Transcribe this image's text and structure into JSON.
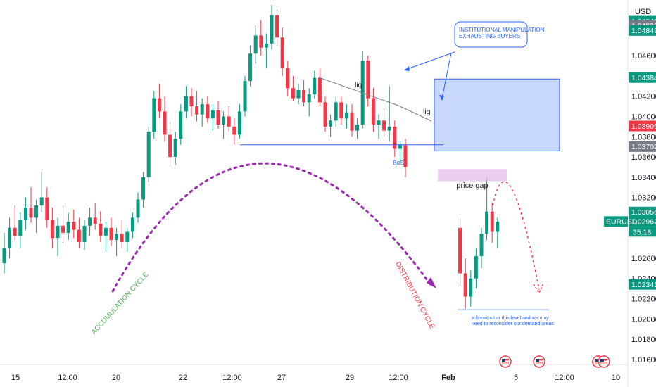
{
  "chart_data": {
    "type": "candlestick",
    "symbol": "EURUSD",
    "currency": "USD",
    "countdown": "35:18",
    "ylim": [
      1.0155,
      1.0515
    ],
    "y_ticks": [
      "1.04600",
      "1.04200",
      "1.04000",
      "1.03800",
      "1.03600",
      "1.03400",
      "1.03200",
      "1.02600",
      "1.02400",
      "1.02200",
      "1.02000",
      "1.01800",
      "1.01600"
    ],
    "x_ticks": [
      "15",
      "12:00",
      "20",
      "22",
      "12:00",
      "27",
      "29",
      "12:00",
      "Feb",
      "5",
      "12:00",
      "10"
    ],
    "price_badges": [
      {
        "label": "1.04941",
        "color": "#089981"
      },
      {
        "label": "1.04899",
        "color": "#787b86"
      },
      {
        "label": "1.04849",
        "color": "#089981"
      },
      {
        "label": "1.04384",
        "color": "#089981"
      },
      {
        "label": "1.03906",
        "color": "#f23645"
      },
      {
        "label": "1.03702",
        "color": "#787b86"
      },
      {
        "label": "1.03056",
        "color": "#089981"
      },
      {
        "label": "1.02962",
        "color": "#089981"
      },
      {
        "label": "1.02341",
        "color": "#089981"
      }
    ],
    "annotations": {
      "callout": "INSTITUTIONAL MANIPULATION\nEXHAUSTING BUYERS",
      "liq1": "liq",
      "liq2": "liq",
      "bos": "BoS",
      "price_gap": "price gap",
      "accumulation": "ACCUMULATION CYCLE",
      "distribution": "DISTRIBUTION CYCLE",
      "breakout_note": "a breakout at this level and we may\nneed to reconsider our demand areas"
    },
    "levels": {
      "bos": 1.0372,
      "supply_zone": [
        1.0366,
        1.0437
      ],
      "price_gap": [
        1.0336,
        1.0348
      ],
      "breakout": 1.0209
    },
    "candles": [
      [
        1.0255,
        1.0285,
        1.0245,
        1.027
      ],
      [
        1.027,
        1.03,
        1.026,
        1.029
      ],
      [
        1.029,
        1.0312,
        1.0278,
        1.0282
      ],
      [
        1.0282,
        1.0305,
        1.027,
        1.0298
      ],
      [
        1.0298,
        1.032,
        1.0288,
        1.031
      ],
      [
        1.031,
        1.033,
        1.0295,
        1.03
      ],
      [
        1.03,
        1.0318,
        1.0285,
        1.0312
      ],
      [
        1.0312,
        1.0345,
        1.0305,
        1.032
      ],
      [
        1.032,
        1.033,
        1.029,
        1.0298
      ],
      [
        1.0298,
        1.031,
        1.027,
        1.028
      ],
      [
        1.028,
        1.03,
        1.0262,
        1.0292
      ],
      [
        1.0292,
        1.0312,
        1.0275,
        1.0285
      ],
      [
        1.0285,
        1.0305,
        1.0278,
        1.0296
      ],
      [
        1.0296,
        1.0308,
        1.028,
        1.0288
      ],
      [
        1.0288,
        1.03,
        1.027,
        1.0276
      ],
      [
        1.0276,
        1.0298,
        1.0268,
        1.0292
      ],
      [
        1.0292,
        1.031,
        1.0282,
        1.03
      ],
      [
        1.03,
        1.0315,
        1.0288,
        1.0294
      ],
      [
        1.0294,
        1.0306,
        1.0276,
        1.0282
      ],
      [
        1.0282,
        1.0296,
        1.0266,
        1.029
      ],
      [
        1.029,
        1.03,
        1.0272,
        1.0278
      ],
      [
        1.0278,
        1.029,
        1.0262,
        1.0284
      ],
      [
        1.0284,
        1.0298,
        1.027,
        1.0276
      ],
      [
        1.0276,
        1.029,
        1.0266,
        1.0286
      ],
      [
        1.0286,
        1.0305,
        1.028,
        1.03
      ],
      [
        1.03,
        1.0325,
        1.0295,
        1.0318
      ],
      [
        1.0318,
        1.0345,
        1.031,
        1.034
      ],
      [
        1.034,
        1.039,
        1.0335,
        1.0385
      ],
      [
        1.0385,
        1.0425,
        1.0378,
        1.0418
      ],
      [
        1.0418,
        1.0432,
        1.0398,
        1.0405
      ],
      [
        1.0405,
        1.042,
        1.0375,
        1.0382
      ],
      [
        1.0382,
        1.0395,
        1.035,
        1.036
      ],
      [
        1.036,
        1.0385,
        1.0352,
        1.0378
      ],
      [
        1.0378,
        1.0412,
        1.0372,
        1.0405
      ],
      [
        1.0405,
        1.043,
        1.0398,
        1.042
      ],
      [
        1.042,
        1.0428,
        1.04,
        1.041
      ],
      [
        1.041,
        1.0425,
        1.0395,
        1.0402
      ],
      [
        1.0402,
        1.0418,
        1.039,
        1.0412
      ],
      [
        1.0412,
        1.042,
        1.0394,
        1.0398
      ],
      [
        1.0398,
        1.0412,
        1.0386,
        1.0406
      ],
      [
        1.0406,
        1.0415,
        1.0388,
        1.0392
      ],
      [
        1.0392,
        1.0405,
        1.0378,
        1.04
      ],
      [
        1.04,
        1.041,
        1.0385,
        1.039
      ],
      [
        1.039,
        1.0398,
        1.0372,
        1.0382
      ],
      [
        1.0382,
        1.0412,
        1.0378,
        1.0405
      ],
      [
        1.0405,
        1.044,
        1.04,
        1.0435
      ],
      [
        1.0435,
        1.047,
        1.043,
        1.0462
      ],
      [
        1.0462,
        1.049,
        1.0452,
        1.048
      ],
      [
        1.048,
        1.0495,
        1.046,
        1.0468
      ],
      [
        1.0468,
        1.0482,
        1.0448,
        1.0472
      ],
      [
        1.0472,
        1.051,
        1.0466,
        1.05
      ],
      [
        1.05,
        1.0506,
        1.047,
        1.0478
      ],
      [
        1.0478,
        1.0488,
        1.044,
        1.0448
      ],
      [
        1.0448,
        1.0455,
        1.042,
        1.0428
      ],
      [
        1.0428,
        1.044,
        1.0415,
        1.0418
      ],
      [
        1.0418,
        1.0432,
        1.0412,
        1.0426
      ],
      [
        1.0426,
        1.0436,
        1.041,
        1.0414
      ],
      [
        1.0414,
        1.0428,
        1.04,
        1.0422
      ],
      [
        1.0422,
        1.0445,
        1.0418,
        1.0438
      ],
      [
        1.0438,
        1.0448,
        1.041,
        1.0414
      ],
      [
        1.0414,
        1.042,
        1.0385,
        1.039
      ],
      [
        1.039,
        1.0402,
        1.038,
        1.0396
      ],
      [
        1.0396,
        1.042,
        1.039,
        1.0414
      ],
      [
        1.0414,
        1.042,
        1.0392,
        1.0398
      ],
      [
        1.0398,
        1.0412,
        1.0388,
        1.0404
      ],
      [
        1.0404,
        1.0412,
        1.038,
        1.0386
      ],
      [
        1.0386,
        1.0398,
        1.0378,
        1.0392
      ],
      [
        1.0392,
        1.0465,
        1.0388,
        1.0455
      ],
      [
        1.0455,
        1.046,
        1.041,
        1.0418
      ],
      [
        1.0418,
        1.0428,
        1.0385,
        1.0392
      ],
      [
        1.0392,
        1.0402,
        1.0378,
        1.0396
      ],
      [
        1.0396,
        1.0408,
        1.038,
        1.0386
      ],
      [
        1.0386,
        1.043,
        1.0375,
        1.039
      ],
      [
        1.039,
        1.0396,
        1.036,
        1.0368
      ],
      [
        1.0368,
        1.0376,
        1.0355,
        1.0372
      ],
      [
        1.0372,
        1.0378,
        1.034,
        1.035
      ],
      [
        1.029,
        1.03,
        1.0232,
        1.0245
      ],
      [
        1.0245,
        1.026,
        1.021,
        1.0222
      ],
      [
        1.0222,
        1.0248,
        1.0212,
        1.024
      ],
      [
        1.024,
        1.027,
        1.023,
        1.0262
      ],
      [
        1.0262,
        1.029,
        1.025,
        1.0284
      ],
      [
        1.0284,
        1.034,
        1.0278,
        1.0306
      ],
      [
        1.0306,
        1.0315,
        1.0275,
        1.0286
      ],
      [
        1.0286,
        1.03,
        1.027,
        1.0296
      ]
    ]
  }
}
